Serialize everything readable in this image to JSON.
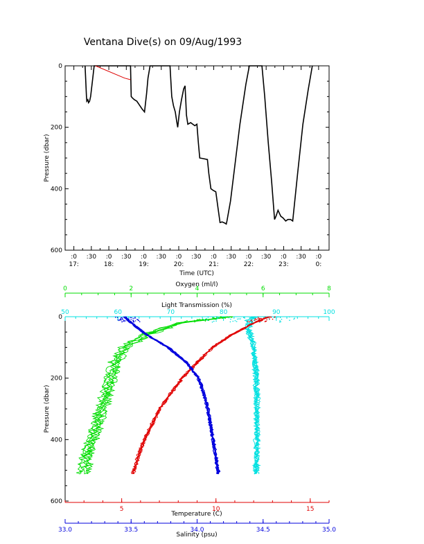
{
  "title": "Ventana Dive(s) on 09/Aug/1993",
  "colors": {
    "axis": "#000000",
    "oxygen": "#00dd00",
    "light": "#00e0e0",
    "temperature": "#e00000",
    "salinity": "#0000dd",
    "pressure_trace": "#000000",
    "surface_segment": "#dd0000"
  },
  "chart_data": [
    {
      "type": "line",
      "name": "pressure-time",
      "xlabel": "Time (UTC)",
      "ylabel": "Pressure (dbar)",
      "x_unit": "hours UTC",
      "xlim": [
        16.75,
        24.3
      ],
      "ylim": [
        600,
        0
      ],
      "yticks": [
        0,
        200,
        400,
        600
      ],
      "xticks": [
        {
          "value": 17.0,
          "min": ":0",
          "hour": "17:"
        },
        {
          "value": 17.5,
          "min": ":30",
          "hour": ""
        },
        {
          "value": 18.0,
          "min": ":0",
          "hour": "18:"
        },
        {
          "value": 18.5,
          "min": ":30",
          "hour": ""
        },
        {
          "value": 19.0,
          "min": ":0",
          "hour": "19:"
        },
        {
          "value": 19.5,
          "min": ":30",
          "hour": ""
        },
        {
          "value": 20.0,
          "min": ":0",
          "hour": "20:"
        },
        {
          "value": 20.5,
          "min": ":30",
          "hour": ""
        },
        {
          "value": 21.0,
          "min": ":0",
          "hour": "21:"
        },
        {
          "value": 21.5,
          "min": ":30",
          "hour": ""
        },
        {
          "value": 22.0,
          "min": ":0",
          "hour": "22:"
        },
        {
          "value": 22.5,
          "min": ":30",
          "hour": ""
        },
        {
          "value": 23.0,
          "min": ":0",
          "hour": "23:"
        },
        {
          "value": 23.5,
          "min": ":30",
          "hour": ""
        },
        {
          "value": 24.0,
          "min": ":0",
          "hour": "0:"
        }
      ],
      "series": [
        {
          "id": "trace",
          "points": [
            [
              17.32,
              0
            ],
            [
              17.36,
              100
            ],
            [
              17.37,
              115
            ],
            [
              17.4,
              110
            ],
            [
              17.42,
              120
            ],
            [
              17.45,
              115
            ],
            [
              17.48,
              100
            ],
            [
              17.54,
              40
            ],
            [
              17.58,
              0
            ],
            [
              17.62,
              0
            ],
            [
              18.62,
              0
            ],
            [
              18.64,
              100
            ],
            [
              18.68,
              105
            ],
            [
              18.73,
              110
            ],
            [
              18.8,
              115
            ],
            [
              18.86,
              125
            ],
            [
              18.95,
              140
            ],
            [
              19.02,
              150
            ],
            [
              19.08,
              90
            ],
            [
              19.12,
              40
            ],
            [
              19.18,
              0
            ],
            [
              19.75,
              0
            ],
            [
              19.8,
              100
            ],
            [
              19.85,
              130
            ],
            [
              19.9,
              150
            ],
            [
              19.94,
              180
            ],
            [
              19.97,
              200
            ],
            [
              20.02,
              150
            ],
            [
              20.08,
              110
            ],
            [
              20.14,
              75
            ],
            [
              20.18,
              65
            ],
            [
              20.2,
              110
            ],
            [
              20.22,
              160
            ],
            [
              20.26,
              190
            ],
            [
              20.34,
              185
            ],
            [
              20.46,
              195
            ],
            [
              20.52,
              190
            ],
            [
              20.56,
              250
            ],
            [
              20.6,
              300
            ],
            [
              20.7,
              302
            ],
            [
              20.82,
              305
            ],
            [
              20.86,
              350
            ],
            [
              20.92,
              400
            ],
            [
              20.98,
              405
            ],
            [
              21.06,
              410
            ],
            [
              21.12,
              460
            ],
            [
              21.18,
              510
            ],
            [
              21.24,
              508
            ],
            [
              21.32,
              512
            ],
            [
              21.36,
              515
            ],
            [
              21.38,
              505
            ],
            [
              21.48,
              440
            ],
            [
              21.6,
              330
            ],
            [
              21.75,
              190
            ],
            [
              21.92,
              60
            ],
            [
              22.02,
              0
            ],
            [
              22.38,
              0
            ],
            [
              22.46,
              100
            ],
            [
              22.56,
              250
            ],
            [
              22.66,
              380
            ],
            [
              22.74,
              500
            ],
            [
              22.78,
              490
            ],
            [
              22.84,
              470
            ],
            [
              22.88,
              480
            ],
            [
              22.92,
              490
            ],
            [
              22.98,
              495
            ],
            [
              23.06,
              505
            ],
            [
              23.12,
              500
            ],
            [
              23.2,
              500
            ],
            [
              23.26,
              505
            ],
            [
              23.4,
              350
            ],
            [
              23.55,
              190
            ],
            [
              23.7,
              80
            ],
            [
              23.82,
              0
            ]
          ]
        },
        {
          "id": "surface",
          "points": [
            [
              17.62,
              0
            ],
            [
              18.45,
              40
            ],
            [
              18.62,
              45
            ]
          ]
        }
      ]
    },
    {
      "type": "line",
      "name": "depth-profiles",
      "ylabel": "Pressure (dbar)",
      "ylim": [
        600,
        0
      ],
      "yticks": [
        0,
        200,
        400,
        600
      ],
      "axes": {
        "oxygen": {
          "label": "Oxygen (ml/l)",
          "lim": [
            0,
            8
          ],
          "ticks": [
            0,
            2,
            4,
            6,
            8
          ],
          "tick_labels": [
            "0",
            "2",
            "4",
            "6",
            "8"
          ]
        },
        "light": {
          "label": "Light Transmission (%)",
          "lim": [
            50,
            100
          ],
          "ticks": [
            50,
            60,
            70,
            80,
            90,
            100
          ],
          "tick_labels": [
            "50",
            "60",
            "70",
            "80",
            "90",
            "100"
          ]
        },
        "temperature": {
          "label": "Temperature (C)",
          "lim": [
            2,
            16
          ],
          "ticks": [
            5,
            10,
            15
          ],
          "tick_labels": [
            "5",
            "10",
            "15"
          ]
        },
        "salinity": {
          "label": "Salinity (psu)",
          "lim": [
            33.0,
            35.0
          ],
          "ticks": [
            33.0,
            33.5,
            34.0,
            34.5,
            35.0
          ],
          "tick_labels": [
            "33.0",
            "33.5",
            "34.0",
            "34.5",
            "35.0"
          ]
        }
      },
      "series": [
        {
          "id": "oxygen",
          "axis": "oxygen",
          "profile": [
            [
              0,
              5.0
            ],
            [
              20,
              3.5
            ],
            [
              60,
              2.4
            ],
            [
              100,
              1.8
            ],
            [
              150,
              1.5
            ],
            [
              200,
              1.35
            ],
            [
              250,
              1.25
            ],
            [
              300,
              1.1
            ],
            [
              350,
              0.95
            ],
            [
              400,
              0.8
            ],
            [
              450,
              0.65
            ],
            [
              510,
              0.55
            ]
          ]
        },
        {
          "id": "light",
          "axis": "light",
          "profile": [
            [
              0,
              86
            ],
            [
              10,
              85
            ],
            [
              40,
              84.5
            ],
            [
              80,
              85.5
            ],
            [
              150,
              86
            ],
            [
              200,
              86.2
            ],
            [
              300,
              86.3
            ],
            [
              400,
              86.3
            ],
            [
              510,
              86.2
            ]
          ]
        },
        {
          "id": "temperature",
          "axis": "temperature",
          "profile": [
            [
              0,
              12.8
            ],
            [
              20,
              12.0
            ],
            [
              60,
              10.8
            ],
            [
              100,
              9.8
            ],
            [
              150,
              9.0
            ],
            [
              200,
              8.2
            ],
            [
              250,
              7.6
            ],
            [
              300,
              7.0
            ],
            [
              350,
              6.6
            ],
            [
              400,
              6.2
            ],
            [
              450,
              5.9
            ],
            [
              510,
              5.6
            ]
          ]
        },
        {
          "id": "salinity",
          "axis": "salinity",
          "profile": [
            [
              0,
              33.45
            ],
            [
              20,
              33.5
            ],
            [
              60,
              33.62
            ],
            [
              100,
              33.78
            ],
            [
              150,
              33.92
            ],
            [
              200,
              34.01
            ],
            [
              250,
              34.05
            ],
            [
              300,
              34.08
            ],
            [
              350,
              34.1
            ],
            [
              400,
              34.12
            ],
            [
              450,
              34.14
            ],
            [
              510,
              34.16
            ]
          ]
        }
      ]
    }
  ]
}
